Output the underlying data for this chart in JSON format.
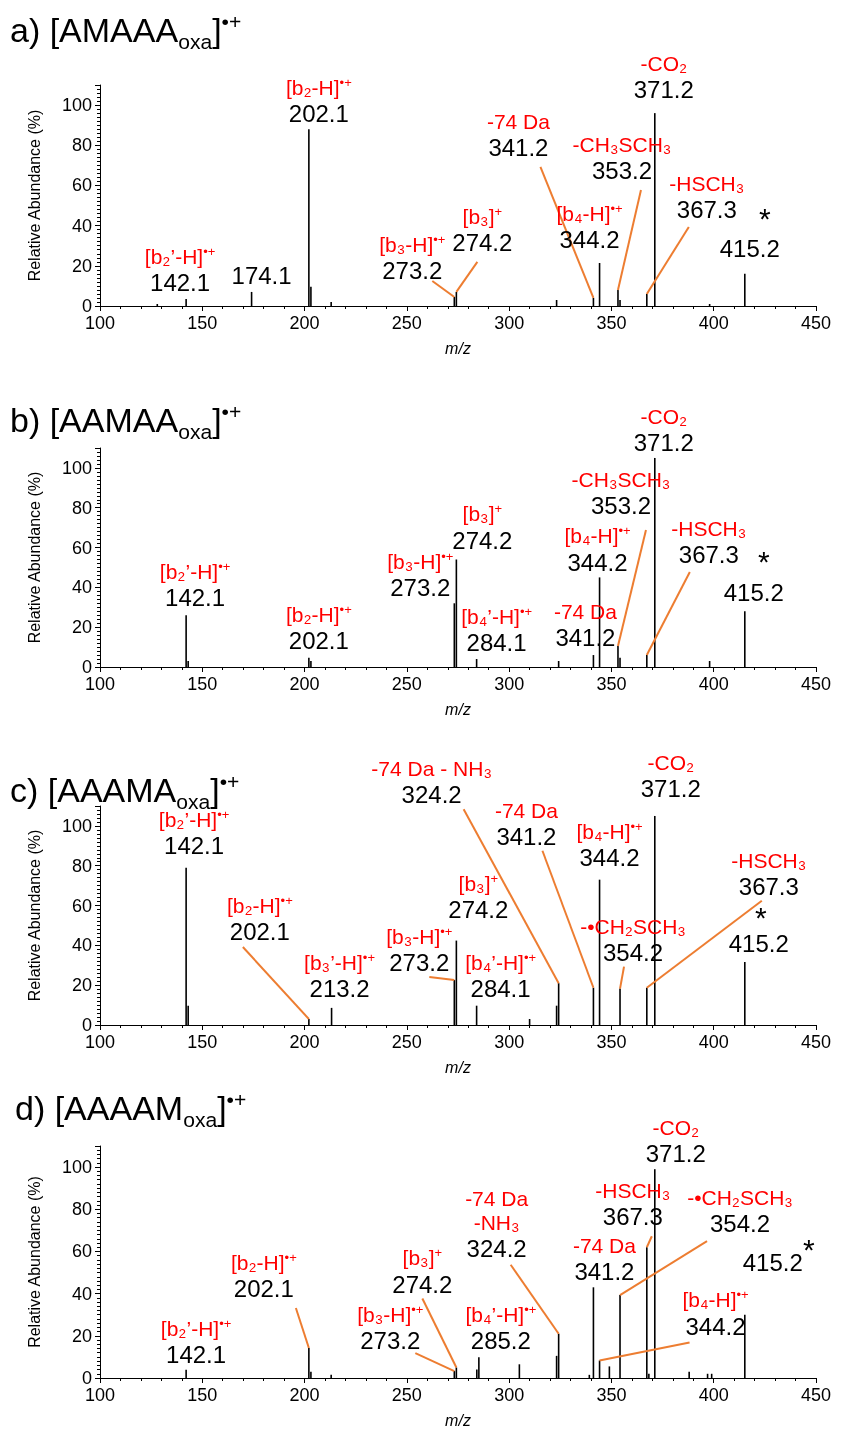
{
  "chart_data": [
    {
      "type": "bar",
      "title": "a) [AMAAA$_{oxa}$]$^{•+}$",
      "xlabel": "m/z",
      "ylabel": "Relative Abundance (%)",
      "color": "#000000",
      "xlim": [
        100,
        450
      ],
      "xticks": [
        100,
        150,
        200,
        250,
        300,
        350,
        400,
        450
      ],
      "ylim": [
        0,
        110
      ],
      "yticks": [
        0,
        20,
        40,
        60,
        80,
        100
      ],
      "x": [
        128,
        142.1,
        174.1,
        202.1,
        203.1,
        213,
        273.2,
        274.2,
        323.2,
        341.2,
        344.2,
        353.2,
        354.2,
        367.3,
        371.2,
        398,
        415.2
      ],
      "values": [
        1,
        3.5,
        7,
        88,
        9.6,
        2,
        4.5,
        7,
        3,
        4,
        21.4,
        8,
        3,
        6,
        96,
        1,
        16
      ],
      "annotations": [
        {
          "text": "[b₂’-H]$^{•+}$\n142.1",
          "x": 142.1,
          "y": 3.5
        },
        {
          "text": "174.1",
          "x": 174.1,
          "y": 7
        },
        {
          "text": "[b₂-H]$^{•+}$\n202.1",
          "x": 202.1,
          "y": 88
        },
        {
          "text": "[b₃-H]$^{•+}$\n273.2",
          "x": 273.2,
          "y": 4.5
        },
        {
          "text": "[b₃]$^{+}$\n274.2",
          "x": 274.2,
          "y": 7
        },
        {
          "text": "-74 Da\n341.2",
          "x": 341.2,
          "y": 4
        },
        {
          "text": "[b₄-H]$^{•+}$\n344.2",
          "x": 344.2,
          "y": 21.4
        },
        {
          "text": "-CH₃SCH₃\n353.2",
          "x": 353.2,
          "y": 8
        },
        {
          "text": "-HSCH₃\n367.3",
          "x": 367.3,
          "y": 6
        },
        {
          "text": "-CO₂\n371.2",
          "x": 371.2,
          "y": 96
        },
        {
          "text": "415.2",
          "x": 415.2,
          "y": 16
        },
        {
          "text": "*",
          "x": 415.2,
          "y": 16
        }
      ]
    },
    {
      "type": "bar",
      "title": "b) [AAMAA$_{oxa}$]$^{•+}$",
      "xlabel": "m/z",
      "ylabel": "Relative Abundance (%)",
      "color": "#000000",
      "xlim": [
        100,
        450
      ],
      "xticks": [
        100,
        150,
        200,
        250,
        300,
        350,
        400,
        450
      ],
      "ylim": [
        0,
        110
      ],
      "yticks": [
        0,
        20,
        40,
        60,
        80,
        100
      ],
      "x": [
        142.1,
        143.1,
        202.1,
        203.1,
        273.2,
        274.2,
        284.1,
        324.2,
        341.2,
        344.2,
        353.2,
        354.2,
        367.3,
        371.2,
        398,
        415.2
      ],
      "values": [
        26,
        3,
        4.7,
        3,
        32,
        54,
        4,
        3,
        6,
        45,
        10.6,
        4.7,
        6,
        105,
        3,
        28
      ],
      "annotations": [
        {
          "text": "[b₂’-H]$^{•+}$\n142.1",
          "x": 142.1,
          "y": 26
        },
        {
          "text": "[b₂-H]$^{•+}$\n202.1",
          "x": 202.1,
          "y": 4.7
        },
        {
          "text": "[b₃-H]$^{•+}$\n273.2",
          "x": 273.2,
          "y": 32
        },
        {
          "text": "[b₃]$^{+}$\n274.2",
          "x": 274.2,
          "y": 54
        },
        {
          "text": "[b₄’-H]$^{•+}$\n284.1",
          "x": 284.1,
          "y": 4
        },
        {
          "text": "-74 Da\n341.2",
          "x": 341.2,
          "y": 6
        },
        {
          "text": "[b₄-H]$^{•+}$\n344.2",
          "x": 344.2,
          "y": 45
        },
        {
          "text": "-CH₃SCH₃\n353.2",
          "x": 353.2,
          "y": 10.6
        },
        {
          "text": "-HSCH₃\n367.3",
          "x": 367.3,
          "y": 6
        },
        {
          "text": "-CO₂\n371.2",
          "x": 371.2,
          "y": 105
        },
        {
          "text": "415.2",
          "x": 415.2,
          "y": 28
        },
        {
          "text": "*",
          "x": 415.2,
          "y": 28
        }
      ]
    },
    {
      "type": "bar",
      "title": "c) [AAAMA$_{oxa}$]$^{•+}$",
      "xlabel": "m/z",
      "ylabel": "Relative Abundance (%)",
      "color": "#000000",
      "xlim": [
        100,
        450
      ],
      "xticks": [
        100,
        150,
        200,
        250,
        300,
        350,
        400,
        450
      ],
      "ylim": [
        0,
        110
      ],
      "yticks": [
        0,
        20,
        40,
        60,
        80,
        100
      ],
      "x": [
        142.1,
        143.1,
        202.1,
        213.2,
        273.2,
        274.2,
        284.1,
        310,
        323.2,
        324.2,
        341.2,
        344.2,
        354.2,
        367.3,
        371.2,
        415.2
      ],
      "values": [
        79,
        9.7,
        3,
        8.6,
        22.6,
        42.4,
        9.7,
        3,
        9.7,
        21,
        18.7,
        73,
        18.3,
        18.7,
        105,
        31.6
      ],
      "annotations": [
        {
          "text": "[b₂’-H]$^{•+}$\n142.1",
          "x": 142.1,
          "y": 79
        },
        {
          "text": "[b₂-H]$^{•+}$\n202.1",
          "x": 202.1,
          "y": 3
        },
        {
          "text": "[b₃’-H]$^{•+}$\n213.2",
          "x": 213.2,
          "y": 8.6
        },
        {
          "text": "[b₃-H]$^{•+}$\n273.2",
          "x": 273.2,
          "y": 22.6
        },
        {
          "text": "[b₃]$^{+}$\n274.2",
          "x": 274.2,
          "y": 42.4
        },
        {
          "text": "[b₄’-H]$^{•+}$\n284.1",
          "x": 284.1,
          "y": 9.7
        },
        {
          "text": "-74 Da - NH₃\n324.2",
          "x": 324.2,
          "y": 21
        },
        {
          "text": "-74 Da\n341.2",
          "x": 341.2,
          "y": 18.7
        },
        {
          "text": "[b₄-H]$^{•+}$\n344.2",
          "x": 344.2,
          "y": 73
        },
        {
          "text": "-•CH₂SCH₃\n354.2",
          "x": 354.2,
          "y": 18.3
        },
        {
          "text": "-HSCH₃\n367.3",
          "x": 367.3,
          "y": 18.7
        },
        {
          "text": "-CO₂\n371.2",
          "x": 371.2,
          "y": 105
        },
        {
          "text": "415.2",
          "x": 415.2,
          "y": 31.6
        },
        {
          "text": "*",
          "x": 415.2,
          "y": 31.6
        }
      ]
    },
    {
      "type": "bar",
      "title": "d) [AAAAM$_{oxa}$]$^{•+}$",
      "xlabel": "m/z",
      "ylabel": "Relative Abundance (%)",
      "color": "#000000",
      "xlim": [
        100,
        450
      ],
      "xticks": [
        100,
        150,
        200,
        250,
        300,
        350,
        400,
        450
      ],
      "ylim": [
        0,
        110
      ],
      "yticks": [
        0,
        20,
        40,
        60,
        80,
        100
      ],
      "x": [
        142.1,
        202.1,
        203.1,
        213,
        273.2,
        274.2,
        284.2,
        285.2,
        305,
        323.2,
        324.2,
        339.2,
        341.2,
        344.2,
        349,
        354.2,
        367.3,
        368.3,
        371.2,
        388,
        397,
        399,
        415.2
      ],
      "values": [
        3.9,
        14.2,
        3,
        1.5,
        3.3,
        5,
        4,
        9.8,
        6.5,
        10.5,
        21,
        1.5,
        43,
        8.3,
        5.5,
        39.3,
        62,
        2,
        99,
        3,
        2,
        2,
        30
      ],
      "annotations": [
        {
          "text": "[b₂’-H]$^{•+}$\n142.1",
          "x": 142.1,
          "y": 3.9
        },
        {
          "text": "[b₂-H]$^{•+}$\n202.1",
          "x": 202.1,
          "y": 14.2
        },
        {
          "text": "[b₃-H]$^{•+}$\n273.2",
          "x": 273.2,
          "y": 3.3
        },
        {
          "text": "[b₃]$^{+}$\n274.2",
          "x": 274.2,
          "y": 5
        },
        {
          "text": "[b₄’-H]$^{•+}$\n285.2",
          "x": 285.2,
          "y": 9.8
        },
        {
          "text": "-74 Da\n-NH₃\n324.2",
          "x": 324.2,
          "y": 21
        },
        {
          "text": "-74 Da\n341.2",
          "x": 341.2,
          "y": 43
        },
        {
          "text": "[b₄-H]$^{•+}$\n344.2",
          "x": 344.2,
          "y": 8.3
        },
        {
          "text": "-•CH₂SCH₃\n354.2",
          "x": 354.2,
          "y": 39.3
        },
        {
          "text": "-HSCH₃\n367.3",
          "x": 367.3,
          "y": 62
        },
        {
          "text": "-CO₂\n371.2",
          "x": 371.2,
          "y": 99
        },
        {
          "text": "415.2",
          "x": 415.2,
          "y": 30
        },
        {
          "text": "*",
          "x": 415.2,
          "y": 30
        }
      ]
    }
  ]
}
